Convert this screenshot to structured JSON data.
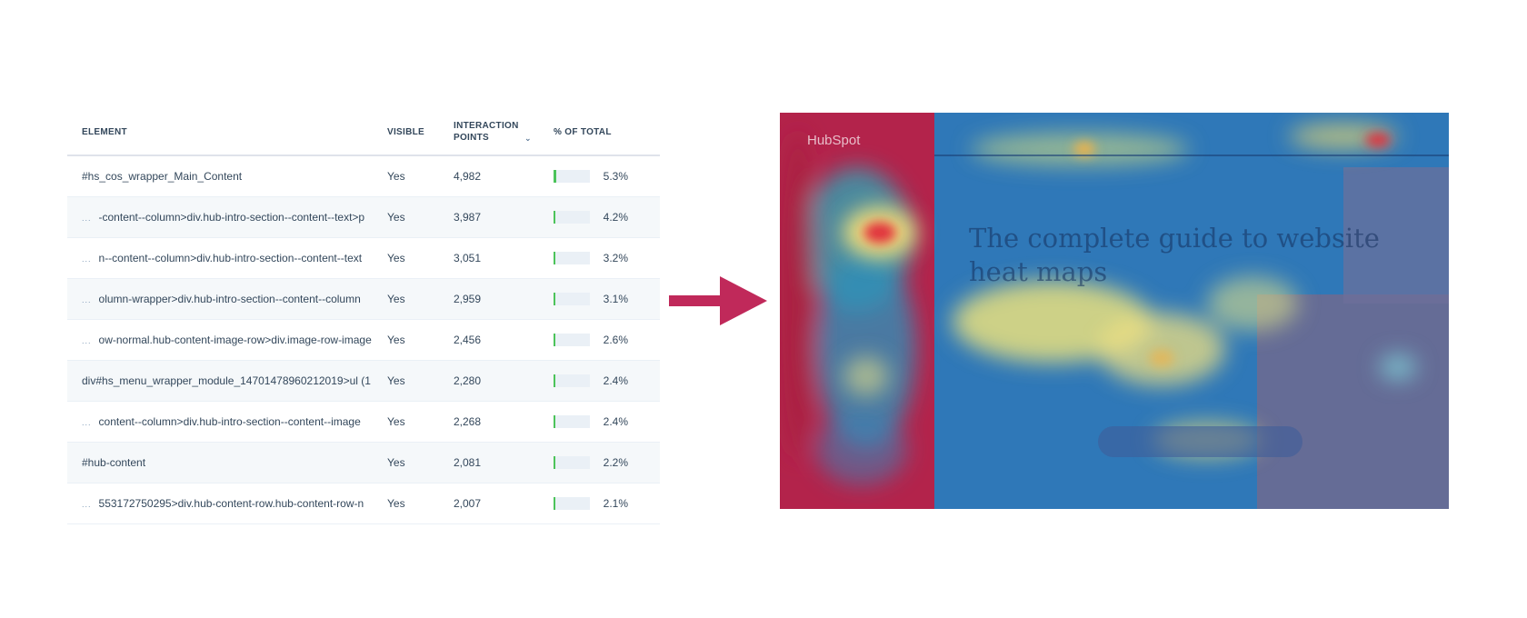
{
  "table": {
    "headers": {
      "element": "ELEMENT",
      "visible": "VISIBLE",
      "interaction_points": "INTERACTION POINTS",
      "percent_total": "% OF TOTAL"
    },
    "rows": [
      {
        "element": "#hs_cos_wrapper_Main_Content",
        "truncated": false,
        "visible": "Yes",
        "points": "4,982",
        "percent": "5.3%",
        "fraction": 0.053
      },
      {
        "element": "-content--column>div.hub-intro-section--content--text>p",
        "truncated": true,
        "visible": "Yes",
        "points": "3,987",
        "percent": "4.2%",
        "fraction": 0.042
      },
      {
        "element": "n--content--column>div.hub-intro-section--content--text",
        "truncated": true,
        "visible": "Yes",
        "points": "3,051",
        "percent": "3.2%",
        "fraction": 0.032
      },
      {
        "element": "olumn-wrapper>div.hub-intro-section--content--column",
        "truncated": true,
        "visible": "Yes",
        "points": "2,959",
        "percent": "3.1%",
        "fraction": 0.031
      },
      {
        "element": "ow-normal.hub-content-image-row>div.image-row-image",
        "truncated": true,
        "visible": "Yes",
        "points": "2,456",
        "percent": "2.6%",
        "fraction": 0.026
      },
      {
        "element": "div#hs_menu_wrapper_module_14701478960212019>ul (1",
        "truncated": false,
        "visible": "Yes",
        "points": "2,280",
        "percent": "2.4%",
        "fraction": 0.024
      },
      {
        "element": "content--column>div.hub-intro-section--content--image",
        "truncated": true,
        "visible": "Yes",
        "points": "2,268",
        "percent": "2.4%",
        "fraction": 0.024
      },
      {
        "element": "#hub-content",
        "truncated": false,
        "visible": "Yes",
        "points": "2,081",
        "percent": "2.2%",
        "fraction": 0.022
      },
      {
        "element": "553172750295>div.hub-content-row.hub-content-row-n",
        "truncated": true,
        "visible": "Yes",
        "points": "2,007",
        "percent": "2.1%",
        "fraction": 0.021
      }
    ],
    "ellipsis": "...",
    "sort_icon": "chevron-down-icon"
  },
  "arrow": {
    "color": "#c0295a",
    "icon": "arrow-right-icon"
  },
  "heatmap": {
    "page_title": "The complete guide to website heat maps",
    "logo": "HubSpot",
    "colors": {
      "cold": "#2f6bb1",
      "warm": "#f2e58a",
      "hot": "#d81c3a"
    }
  }
}
